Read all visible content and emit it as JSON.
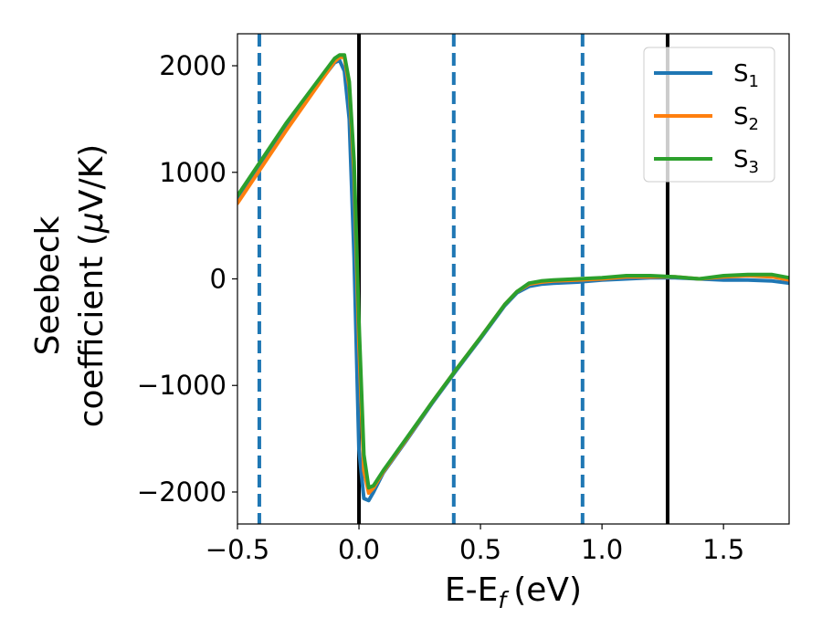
{
  "chart_data": {
    "type": "line",
    "xlabel": "E-E",
    "xlabel_subscript": "f",
    "xlabel_unit": "(eV)",
    "ylabel_line1": "Seebeck",
    "ylabel_line2_prefix": "coefficient  (",
    "ylabel_mu": "μ",
    "ylabel_line2_suffix": "V/K)",
    "xlim": [
      -0.5,
      1.77
    ],
    "ylim": [
      -2300,
      2300
    ],
    "xticks": [
      -0.5,
      0.0,
      0.5,
      1.0,
      1.5
    ],
    "xtick_labels": [
      "−0.5",
      "0.0",
      "0.5",
      "1.0",
      "1.5"
    ],
    "yticks": [
      -2000,
      -1000,
      0,
      1000,
      2000
    ],
    "ytick_labels": [
      "−2000",
      "−1000",
      "0",
      "1000",
      "2000"
    ],
    "grid": false,
    "legend_position": "top-right",
    "vlines_solid": [
      0.0,
      1.27
    ],
    "vlines_dashed": [
      -0.41,
      0.39,
      0.92
    ],
    "vline_solid_color": "#000000",
    "vline_dashed_color": "#1f77b4",
    "series": [
      {
        "name": "S",
        "name_subscript": "1",
        "color": "#1f77b4",
        "x": [
          -0.5,
          -0.3,
          -0.1,
          -0.08,
          -0.06,
          -0.04,
          -0.02,
          0.0,
          0.02,
          0.04,
          0.06,
          0.1,
          0.2,
          0.3,
          0.4,
          0.5,
          0.6,
          0.65,
          0.7,
          0.75,
          0.8,
          0.9,
          1.0,
          1.1,
          1.2,
          1.3,
          1.4,
          1.5,
          1.6,
          1.7,
          1.77
        ],
        "y": [
          760,
          1440,
          2030,
          2050,
          1950,
          1500,
          200,
          -1600,
          -2060,
          -2080,
          -2000,
          -1820,
          -1500,
          -1170,
          -860,
          -560,
          -250,
          -130,
          -70,
          -50,
          -40,
          -30,
          -10,
          0,
          10,
          10,
          0,
          -10,
          -10,
          -20,
          -40
        ]
      },
      {
        "name": "S",
        "name_subscript": "2",
        "color": "#ff7f0e",
        "x": [
          -0.5,
          -0.3,
          -0.1,
          -0.08,
          -0.06,
          -0.04,
          -0.02,
          0.0,
          0.02,
          0.04,
          0.06,
          0.1,
          0.2,
          0.3,
          0.4,
          0.5,
          0.6,
          0.65,
          0.7,
          0.75,
          0.8,
          0.9,
          1.0,
          1.1,
          1.2,
          1.3,
          1.4,
          1.5,
          1.6,
          1.7,
          1.77
        ],
        "y": [
          710,
          1390,
          2040,
          2080,
          2080,
          1800,
          1000,
          -600,
          -1800,
          -2010,
          -1960,
          -1810,
          -1490,
          -1160,
          -850,
          -550,
          -240,
          -120,
          -50,
          -30,
          -20,
          -10,
          0,
          20,
          20,
          20,
          0,
          20,
          30,
          20,
          -10
        ]
      },
      {
        "name": "S",
        "name_subscript": "3",
        "color": "#2ca02c",
        "x": [
          -0.5,
          -0.3,
          -0.1,
          -0.08,
          -0.06,
          -0.04,
          -0.02,
          0.0,
          0.02,
          0.04,
          0.06,
          0.1,
          0.2,
          0.3,
          0.4,
          0.5,
          0.6,
          0.65,
          0.7,
          0.75,
          0.8,
          0.9,
          1.0,
          1.1,
          1.2,
          1.3,
          1.4,
          1.5,
          1.6,
          1.7,
          1.77
        ],
        "y": [
          780,
          1460,
          2070,
          2100,
          2100,
          1850,
          1100,
          -400,
          -1650,
          -1960,
          -1940,
          -1800,
          -1480,
          -1160,
          -850,
          -550,
          -240,
          -120,
          -40,
          -20,
          -10,
          0,
          10,
          30,
          30,
          20,
          0,
          30,
          40,
          40,
          10
        ]
      }
    ]
  }
}
